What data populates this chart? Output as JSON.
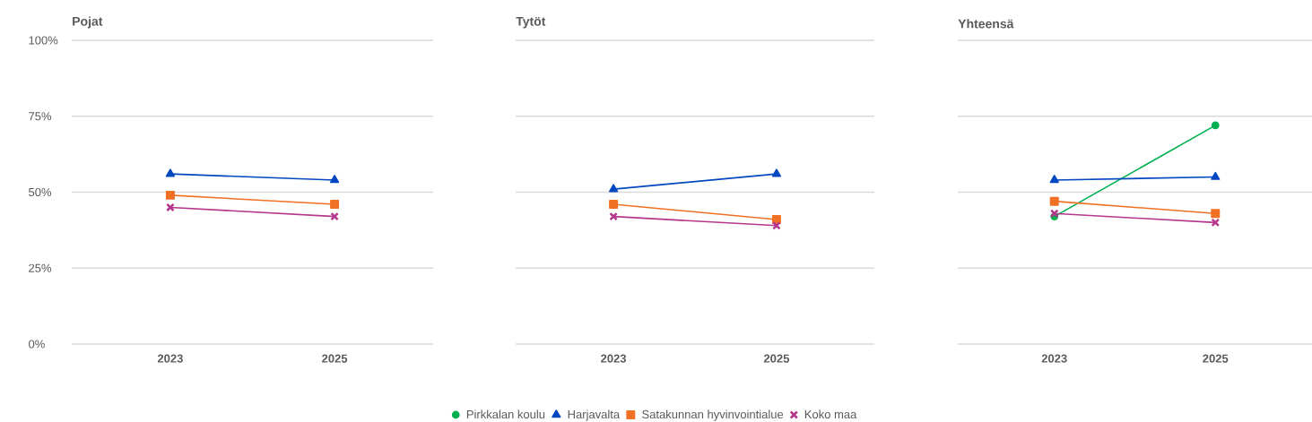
{
  "chart_data": [
    {
      "type": "line",
      "title": "Pojat",
      "categories": [
        "2023",
        "2025"
      ],
      "ylim": [
        0,
        100
      ],
      "yticks": [
        {
          "value": 0,
          "label": "0%"
        },
        {
          "value": 25,
          "label": "25%"
        },
        {
          "value": 50,
          "label": "50%"
        },
        {
          "value": 75,
          "label": "75%"
        },
        {
          "value": 100,
          "label": "100%"
        }
      ],
      "grid": "y",
      "series": [
        {
          "color": "#0047c0",
          "marker": "triangle",
          "values": [
            56,
            54
          ]
        },
        {
          "color": "#f07024",
          "marker": "square",
          "values": [
            49,
            46
          ]
        },
        {
          "color": "#b5378c",
          "marker": "cross",
          "values": [
            45,
            42
          ]
        }
      ]
    },
    {
      "type": "line",
      "title": "Tytöt",
      "categories": [
        "2023",
        "2025"
      ],
      "ylim": [
        0,
        100
      ],
      "yticks": [
        0,
        25,
        50,
        75,
        100
      ],
      "grid": "y",
      "tick_labels": "x",
      "series": [
        {
          "color": "#0047c0",
          "marker": "triangle",
          "values": [
            51,
            56
          ]
        },
        {
          "color": "#f07024",
          "marker": "square",
          "values": [
            46,
            41
          ]
        },
        {
          "color": "#b5378c",
          "marker": "cross",
          "values": [
            42,
            39
          ]
        }
      ]
    },
    {
      "type": "line",
      "title": "Yhteensä",
      "categories": [
        "2023",
        "2025"
      ],
      "ylim": [
        0,
        100
      ],
      "yticks": [
        0,
        25,
        50,
        75,
        100
      ],
      "grid": "y",
      "tick_labels": "x",
      "legend": "bottom",
      "series": [
        {
          "name": "Pirkkalan koulu",
          "color": "#00b050",
          "marker": "circle",
          "values": [
            42,
            72
          ]
        },
        {
          "name": "Harjavalta",
          "color": "#0047c0",
          "marker": "triangle",
          "values": [
            54,
            55
          ]
        },
        {
          "name": "Satakunnan hyvinvointialue",
          "color": "#f07024",
          "marker": "square",
          "values": [
            47,
            43
          ]
        },
        {
          "name": "Koko maa",
          "color": "#b5378c",
          "marker": "cross",
          "values": [
            43,
            40
          ]
        }
      ]
    }
  ]
}
